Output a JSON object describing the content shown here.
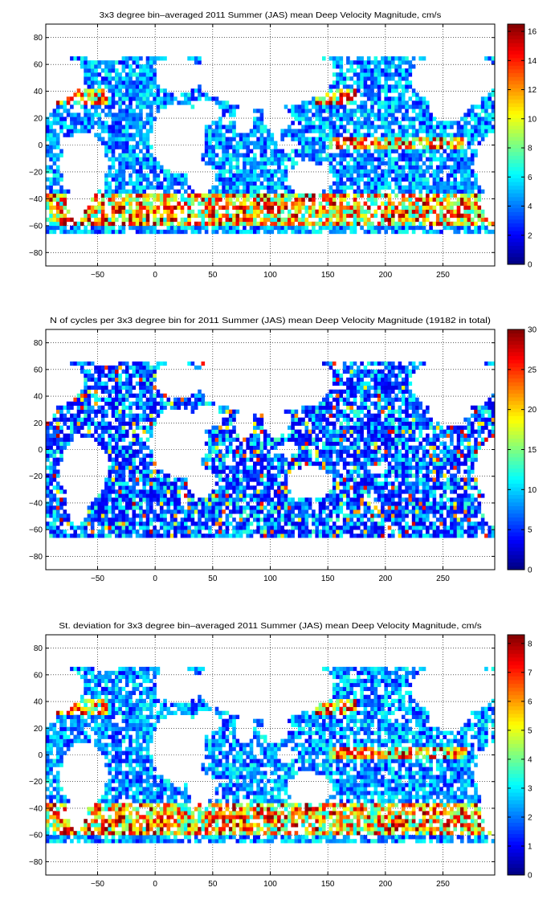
{
  "chart_data": [
    {
      "type": "heatmap",
      "title": "3x3 degree bin–averaged 2011 Summer (JAS) mean Deep Velocity Magnitude, cm/s",
      "xlim": [
        -95,
        295
      ],
      "ylim": [
        -90,
        90
      ],
      "xticks": [
        -50,
        0,
        50,
        100,
        150,
        200,
        250
      ],
      "yticks": [
        80,
        60,
        40,
        20,
        0,
        -20,
        -40,
        -60,
        -80
      ],
      "grid": true,
      "colormap": "jet",
      "colorbar": {
        "min": 0,
        "max": 16.5,
        "ticks": [
          0,
          2,
          4,
          6,
          8,
          10,
          12,
          14,
          16
        ]
      }
    },
    {
      "type": "heatmap",
      "title": "N of cycles per 3x3 degree bin for 2011 Summer (JAS) mean Deep Velocity Magnitude (19182 in total)",
      "xlim": [
        -95,
        295
      ],
      "ylim": [
        -90,
        90
      ],
      "xticks": [
        -50,
        0,
        50,
        100,
        150,
        200,
        250
      ],
      "yticks": [
        80,
        60,
        40,
        20,
        0,
        -20,
        -40,
        -60,
        -80
      ],
      "grid": true,
      "colormap": "jet",
      "colorbar": {
        "min": 0,
        "max": 30,
        "ticks": [
          0,
          5,
          10,
          15,
          20,
          25,
          30
        ]
      }
    },
    {
      "type": "heatmap",
      "title": "St. deviation for 3x3 degree bin–averaged 2011 Summer (JAS) mean Deep Velocity Magnitude, cm/s",
      "xlim": [
        -95,
        295
      ],
      "ylim": [
        -90,
        90
      ],
      "xticks": [
        -50,
        0,
        50,
        100,
        150,
        200,
        250
      ],
      "yticks": [
        80,
        60,
        40,
        20,
        0,
        -20,
        -40,
        -60,
        -80
      ],
      "grid": true,
      "colormap": "jet",
      "colorbar": {
        "min": 0,
        "max": 8.3,
        "ticks": [
          0,
          1,
          2,
          3,
          4,
          5,
          6,
          7,
          8
        ]
      }
    }
  ]
}
